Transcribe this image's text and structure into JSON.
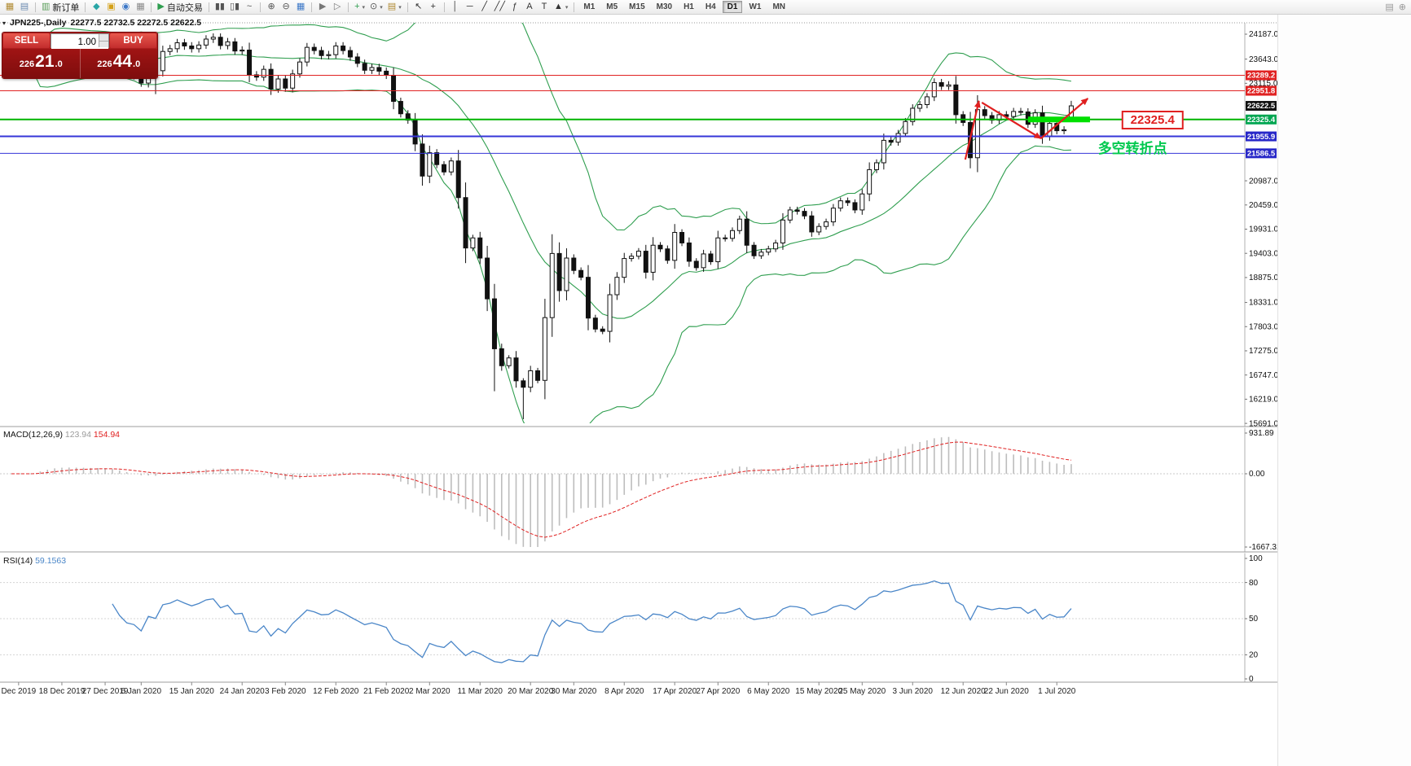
{
  "icons": {
    "collapse": "▾",
    "spin_up": "▴",
    "spin_down": "▾"
  },
  "toolbar": {
    "caret_glyph": "▾",
    "groups": [
      {
        "items": [
          {
            "name": "new-chart",
            "glyph": "▦",
            "color": "#b08a30"
          },
          {
            "name": "chart-profiles",
            "glyph": "▤",
            "color": "#6a8ab0"
          }
        ]
      },
      {
        "items": [
          {
            "name": "new-order",
            "glyph": "▥",
            "color": "#5a9e5a",
            "label": "新订单"
          }
        ]
      },
      {
        "items": [
          {
            "name": "market-watch",
            "glyph": "◆",
            "color": "#2aa6a6"
          },
          {
            "name": "data-window",
            "glyph": "▣",
            "color": "#d4a017"
          },
          {
            "name": "navigator",
            "glyph": "◉",
            "color": "#3c78c8"
          },
          {
            "name": "terminal",
            "glyph": "▦",
            "color": "#8a8a8a"
          }
        ]
      },
      {
        "items": [
          {
            "name": "auto-trading",
            "glyph": "▶",
            "color": "#2f9e4f",
            "label": "自动交易"
          }
        ]
      },
      {
        "items": [
          {
            "name": "bar-chart-mode",
            "glyph": "▮▮",
            "color": "#555555"
          },
          {
            "name": "candle-chart-mode",
            "glyph": "▯▮",
            "color": "#555555"
          },
          {
            "name": "line-chart-mode",
            "glyph": "~",
            "color": "#555555"
          }
        ]
      },
      {
        "items": [
          {
            "name": "zoom-in",
            "glyph": "⊕",
            "color": "#555555"
          },
          {
            "name": "zoom-out",
            "glyph": "⊖",
            "color": "#555555"
          },
          {
            "name": "tile-windows",
            "glyph": "▦",
            "color": "#3c78c8"
          }
        ]
      },
      {
        "items": [
          {
            "name": "auto-scroll",
            "glyph": "▶",
            "color": "#777777"
          },
          {
            "name": "chart-shift",
            "glyph": "▷",
            "color": "#777777"
          }
        ]
      },
      {
        "items": [
          {
            "name": "indicators-list",
            "glyph": "+",
            "color": "#2f9e4f",
            "caret": true
          },
          {
            "name": "periods",
            "glyph": "⊙",
            "color": "#555555",
            "caret": true
          },
          {
            "name": "templates",
            "glyph": "▤",
            "color": "#b08a30",
            "caret": true
          }
        ]
      },
      {
        "items": [
          {
            "name": "cursor",
            "glyph": "↖",
            "color": "#333333"
          },
          {
            "name": "crosshair",
            "glyph": "+",
            "color": "#333333"
          }
        ]
      },
      {
        "items": [
          {
            "name": "vertical-line",
            "glyph": "│",
            "color": "#333333"
          },
          {
            "name": "horizontal-line",
            "glyph": "─",
            "color": "#333333"
          },
          {
            "name": "trendline",
            "glyph": "╱",
            "color": "#333333"
          },
          {
            "name": "equidistant-channel",
            "glyph": "╱╱",
            "color": "#333333"
          },
          {
            "name": "fibonacci",
            "glyph": "ƒ",
            "color": "#333333"
          },
          {
            "name": "text",
            "glyph": "A",
            "color": "#333333"
          },
          {
            "name": "text-label",
            "glyph": "T",
            "color": "#333333"
          },
          {
            "name": "shapes",
            "glyph": "▲",
            "color": "#333333",
            "caret": true
          }
        ]
      },
      {
        "timeframes": [
          "M1",
          "M5",
          "M15",
          "M30",
          "H1",
          "H4",
          "D1",
          "W1",
          "MN"
        ],
        "active": "D1"
      }
    ],
    "right_icons": [
      {
        "name": "panel-toggle-icon",
        "glyph": "▤"
      },
      {
        "name": "quick-search-icon",
        "glyph": "⊕"
      }
    ]
  },
  "chart": {
    "title_symbol": "JPN225-,Daily",
    "title_ohlc": "22277.5 22732.5 22272.5 22622.5",
    "one_click": {
      "sell_label": "SELL",
      "buy_label": "BUY",
      "volume": "1.00",
      "sell_price": "22621.0",
      "buy_price": "22644.0"
    }
  },
  "chart_data": {
    "type": "candlestick",
    "symbol": "JPN225",
    "period": "Daily",
    "last_ohlc": [
      22277.5,
      22732.5,
      22272.5,
      22622.5
    ],
    "closes": [
      23390,
      23410,
      23395,
      23430,
      24010,
      24030,
      24060,
      23950,
      23870,
      23830,
      23830,
      23820,
      23870,
      23830,
      23680,
      23480,
      23320,
      23280,
      23120,
      23440,
      23390,
      23810,
      23870,
      24000,
      23930,
      23870,
      23950,
      24080,
      24120,
      23940,
      24020,
      23820,
      23840,
      23300,
      23250,
      23420,
      22990,
      23210,
      23010,
      23320,
      23580,
      23900,
      23830,
      23720,
      23740,
      23930,
      23830,
      23690,
      23550,
      23400,
      23460,
      23380,
      23290,
      22720,
      22450,
      22310,
      21790,
      21090,
      21600,
      21340,
      21180,
      21420,
      20620,
      19520,
      19740,
      19300,
      18410,
      17320,
      16950,
      17120,
      16620,
      16480,
      16840,
      16630,
      18000,
      19400,
      18590,
      19300,
      19030,
      18880,
      17990,
      17750,
      17700,
      18500,
      18880,
      19290,
      19340,
      19450,
      18990,
      19580,
      19500,
      19250,
      19860,
      19630,
      19230,
      19090,
      19390,
      19220,
      19740,
      19730,
      19900,
      20150,
      19580,
      19350,
      19430,
      19500,
      19630,
      20130,
      20350,
      20320,
      20220,
      19870,
      19990,
      20090,
      20390,
      20550,
      20510,
      20350,
      20700,
      21230,
      21380,
      21870,
      21830,
      22020,
      22280,
      22570,
      22650,
      22820,
      23130,
      23050,
      23080,
      22430,
      22260,
      21490,
      22540,
      22410,
      22310,
      22430,
      22390,
      22500,
      22490,
      22220,
      22470,
      21950,
      22240,
      22080,
      22100,
      22622.5
    ],
    "wick_extra_low": {
      "20": 430,
      "67": 600,
      "71": 640
    },
    "bollinger": {
      "period": 20,
      "deviation": 2
    },
    "price_axis_labels": [
      24187.0,
      23643.0,
      23115.0,
      20987.0,
      20459.0,
      19931.0,
      19403.0,
      18875.0,
      18331.0,
      17803.0,
      17275.0,
      16747.0,
      16219.0,
      15691.0
    ],
    "hlines": [
      {
        "price": 23289.2,
        "line_color": "#e02222",
        "width": 1,
        "badge_color": "#e02222"
      },
      {
        "price": 22951.8,
        "line_color": "#e02222",
        "width": 1,
        "badge_color": "#e02222"
      },
      {
        "price": 22622.5,
        "line_color": null,
        "width": 0,
        "badge_color": "#111111"
      },
      {
        "price": 22325.4,
        "line_color": "#00b400",
        "width": 2,
        "badge_color": "#00a651"
      },
      {
        "price": 21955.9,
        "line_color": "#3535d8",
        "width": 2,
        "badge_color": "#2828c8"
      },
      {
        "price": 21586.5,
        "line_color": "#3535d8",
        "width": 1,
        "badge_color": "#2828c8"
      }
    ],
    "annotations": {
      "price_box": "22325.4",
      "cn_label": "多空转折点",
      "cn_color": "#00c94e",
      "highlight_color": "#00e000",
      "arrow_color": "#e02020",
      "highlight": {
        "from_bar": 141.0,
        "to_bar": 149.6,
        "price": 22325.4
      },
      "box": {
        "bar": 154.1,
        "price": 22312
      },
      "cn": {
        "bar": 150.7,
        "price": 21592
      },
      "arrows": [
        {
          "from_bar": 132.3,
          "from_price": 21450,
          "to_bar": 134.2,
          "to_price": 22730
        },
        {
          "from_bar": 134.6,
          "from_price": 22695,
          "to_bar": 142.8,
          "to_price": 21912
        },
        {
          "from_bar": 142.8,
          "from_price": 21912,
          "to_bar": 149.3,
          "to_price": 22783
        }
      ]
    },
    "x_labels": [
      {
        "t": "Dec 2019",
        "i": 1
      },
      {
        "t": "18 Dec 2019",
        "i": 7
      },
      {
        "t": "27 Dec 2019",
        "i": 13
      },
      {
        "t": "6 Jan 2020",
        "i": 18
      },
      {
        "t": "15 Jan 2020",
        "i": 25
      },
      {
        "t": "24 Jan 2020",
        "i": 32
      },
      {
        "t": "3 Feb 2020",
        "i": 38
      },
      {
        "t": "12 Feb 2020",
        "i": 45
      },
      {
        "t": "21 Feb 2020",
        "i": 52
      },
      {
        "t": "2 Mar 2020",
        "i": 58
      },
      {
        "t": "11 Mar 2020",
        "i": 65
      },
      {
        "t": "20 Mar 2020",
        "i": 72
      },
      {
        "t": "30 Mar 2020",
        "i": 78
      },
      {
        "t": "8 Apr 2020",
        "i": 85
      },
      {
        "t": "17 Apr 2020",
        "i": 92
      },
      {
        "t": "27 Apr 2020",
        "i": 98
      },
      {
        "t": "6 May 2020",
        "i": 105
      },
      {
        "t": "15 May 2020",
        "i": 112
      },
      {
        "t": "25 May 2020",
        "i": 118
      },
      {
        "t": "3 Jun 2020",
        "i": 125
      },
      {
        "t": "12 Jun 2020",
        "i": 132
      },
      {
        "t": "22 Jun 2020",
        "i": 138
      },
      {
        "t": "1 Jul 2020",
        "i": 145
      }
    ],
    "indicators": {
      "macd": {
        "label": "MACD(12,26,9)",
        "value1": "123.94",
        "value2": "154.94",
        "axis": [
          "931.89",
          "0.00",
          "-1667.31"
        ]
      },
      "rsi": {
        "label": "RSI(14)",
        "value": "59.1563",
        "axis": [
          "100",
          "80",
          "50",
          "20",
          "0"
        ],
        "levels": [
          80,
          50,
          20
        ]
      }
    }
  }
}
